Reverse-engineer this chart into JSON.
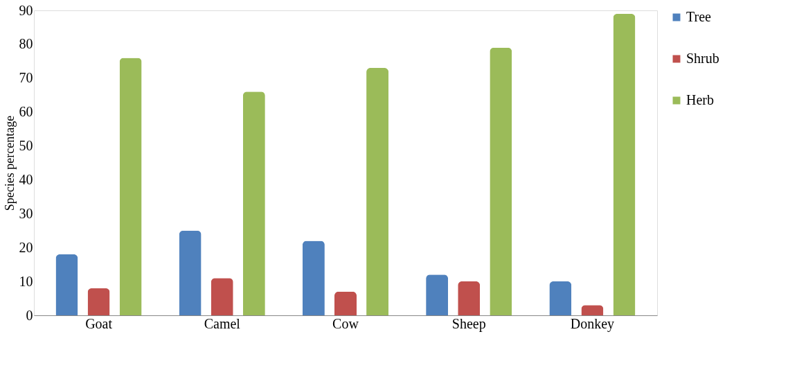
{
  "chart_data": {
    "type": "bar",
    "ylabel": "Species percentage",
    "categories": [
      "Goat",
      "Camel",
      "Cow",
      "Sheep",
      "Donkey"
    ],
    "series": [
      {
        "name": "Tree",
        "color": "#4f81bd",
        "values": [
          18,
          25,
          22,
          12,
          10
        ]
      },
      {
        "name": "Shrub",
        "color": "#c0504d",
        "values": [
          8,
          11,
          7,
          10,
          3
        ]
      },
      {
        "name": "Herb",
        "color": "#9bbb59",
        "values": [
          76,
          66,
          73,
          79,
          89
        ]
      }
    ],
    "ylim": [
      0,
      90
    ],
    "yticks": [
      0,
      10,
      20,
      30,
      40,
      50,
      60,
      70,
      80,
      90
    ],
    "grid": false,
    "legend": "right"
  }
}
